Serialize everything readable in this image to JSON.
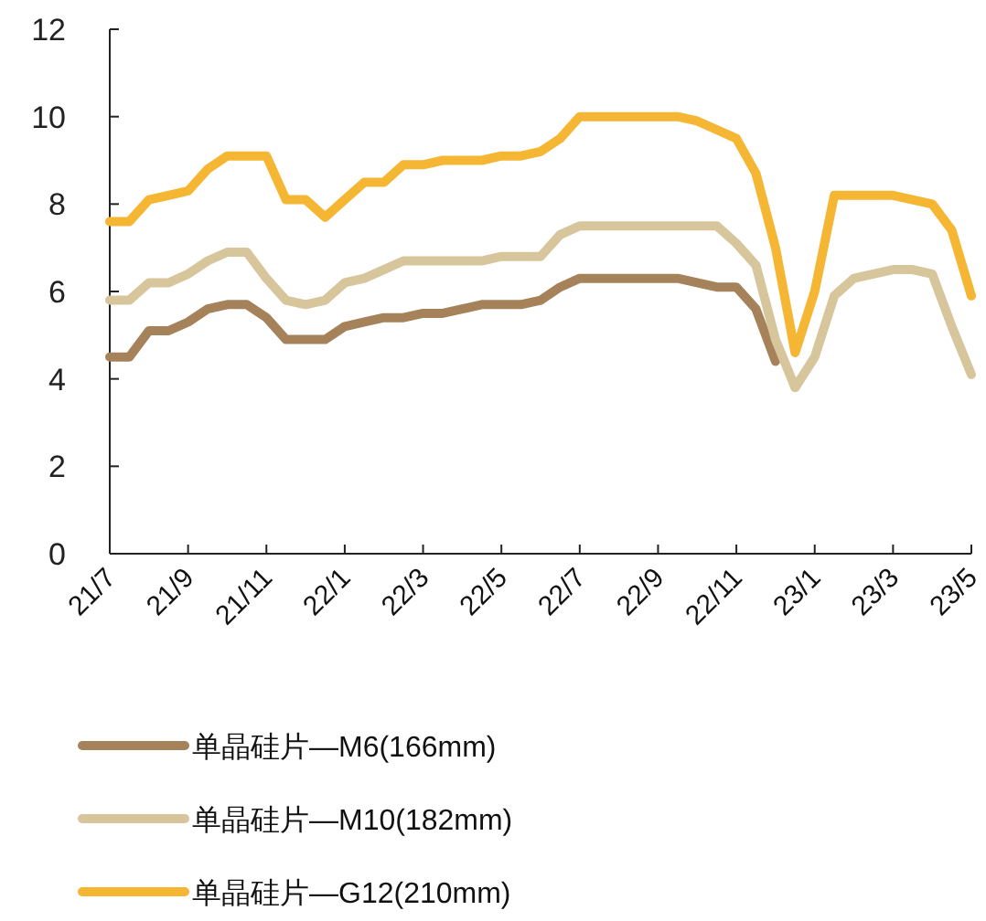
{
  "chart_data": {
    "type": "line",
    "ylim": [
      0,
      12
    ],
    "yticks": [
      0,
      2,
      4,
      6,
      8,
      10,
      12
    ],
    "categories": [
      "21/7",
      null,
      null,
      null,
      "21/9",
      null,
      null,
      null,
      "21/11",
      null,
      null,
      null,
      "22/1",
      null,
      null,
      null,
      "22/3",
      null,
      null,
      null,
      "22/5",
      null,
      null,
      null,
      "22/7",
      null,
      null,
      null,
      "22/9",
      null,
      null,
      null,
      "22/11",
      null,
      null,
      null,
      "23/1",
      null,
      null,
      null,
      "23/3",
      null,
      null,
      null,
      "23/5"
    ],
    "legend": "bottom",
    "series": [
      {
        "name": "单晶硅片—M6(166mm)",
        "color": "#a6825a",
        "values": [
          4.5,
          4.5,
          5.1,
          5.1,
          5.3,
          5.6,
          5.7,
          5.7,
          5.4,
          4.9,
          4.9,
          4.9,
          5.2,
          5.3,
          5.4,
          5.4,
          5.5,
          5.5,
          5.6,
          5.7,
          5.7,
          5.7,
          5.8,
          6.1,
          6.3,
          6.3,
          6.3,
          6.3,
          6.3,
          6.3,
          6.2,
          6.1,
          6.1,
          5.6,
          4.4,
          null,
          null,
          null,
          null,
          null,
          null,
          null,
          null,
          null,
          null
        ]
      },
      {
        "name": "单晶硅片—M10(182mm)",
        "color": "#d7c59c",
        "values": [
          5.8,
          5.8,
          6.2,
          6.2,
          6.4,
          6.7,
          6.9,
          6.9,
          6.3,
          5.8,
          5.7,
          5.8,
          6.2,
          6.3,
          6.5,
          6.7,
          6.7,
          6.7,
          6.7,
          6.7,
          6.8,
          6.8,
          6.8,
          7.3,
          7.5,
          7.5,
          7.5,
          7.5,
          7.5,
          7.5,
          7.5,
          7.5,
          7.1,
          6.6,
          4.9,
          3.8,
          4.5,
          5.9,
          6.3,
          6.4,
          6.5,
          6.5,
          6.4,
          5.2,
          4.1
        ]
      },
      {
        "name": "单晶硅片—G12(210mm)",
        "color": "#f4b633",
        "values": [
          7.6,
          7.6,
          8.1,
          8.2,
          8.3,
          8.8,
          9.1,
          9.1,
          9.1,
          8.1,
          8.1,
          7.7,
          8.1,
          8.5,
          8.5,
          8.9,
          8.9,
          9.0,
          9.0,
          9.0,
          9.1,
          9.1,
          9.2,
          9.5,
          10.0,
          10.0,
          10.0,
          10.0,
          10.0,
          10.0,
          9.9,
          9.7,
          9.5,
          8.7,
          7.0,
          4.6,
          6.0,
          8.2,
          8.2,
          8.2,
          8.2,
          8.1,
          8.0,
          7.4,
          5.9
        ]
      }
    ]
  }
}
